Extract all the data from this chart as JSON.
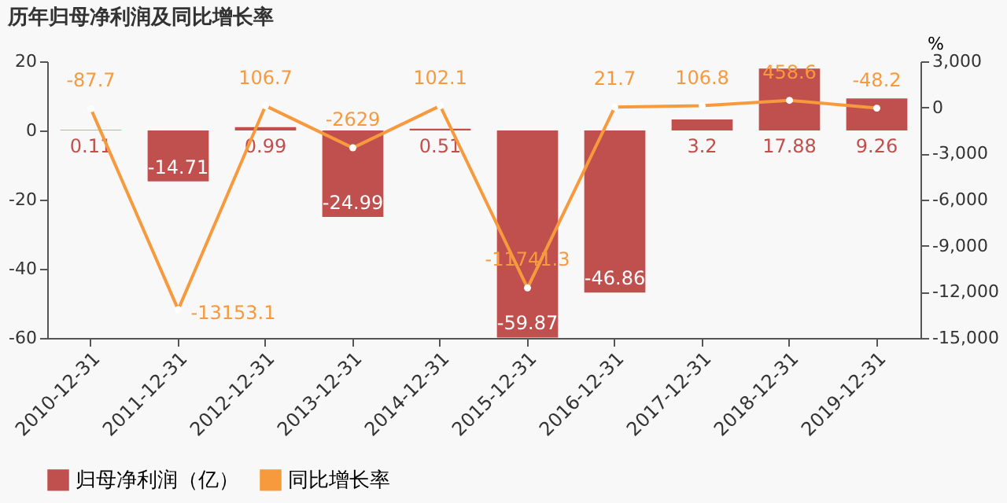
{
  "chart_data": {
    "type": "bar",
    "title": "历年归母净利润及同比增长率",
    "y2label": "%",
    "categories": [
      "2010-12-31",
      "2011-12-31",
      "2012-12-31",
      "2013-12-31",
      "2014-12-31",
      "2015-12-31",
      "2016-12-31",
      "2017-12-31",
      "2018-12-31",
      "2019-12-31"
    ],
    "series": [
      {
        "name": "归母净利润（亿）",
        "color": "#c0504d",
        "values": [
          0.11,
          -14.71,
          0.99,
          -24.99,
          0.51,
          -59.87,
          -46.86,
          3.2,
          17.88,
          9.26
        ]
      },
      {
        "name": "同比增长率",
        "type": "line",
        "axis": "y2",
        "color": "#f79a3e",
        "marker": "circle",
        "values": [
          -87.7,
          -13153.1,
          106.7,
          -2629,
          102.1,
          -11741.3,
          21.7,
          106.8,
          458.6,
          -48.2
        ]
      }
    ],
    "ylim": [
      -60,
      20
    ],
    "yticks": [
      -60,
      -40,
      -20,
      0,
      20
    ],
    "y2lim": [
      -15000,
      3000
    ],
    "y2ticks": [
      {
        "value": -15000,
        "label": "-15,000"
      },
      {
        "value": -12000,
        "label": "-12,000"
      },
      {
        "value": -9000,
        "label": "-9,000"
      },
      {
        "value": -6000,
        "label": "-6,000"
      },
      {
        "value": -3000,
        "label": "-3,000"
      },
      0,
      {
        "value": 3000,
        "label": "3,000"
      }
    ],
    "data_labels": true,
    "grid": false,
    "legend": "bottom"
  }
}
